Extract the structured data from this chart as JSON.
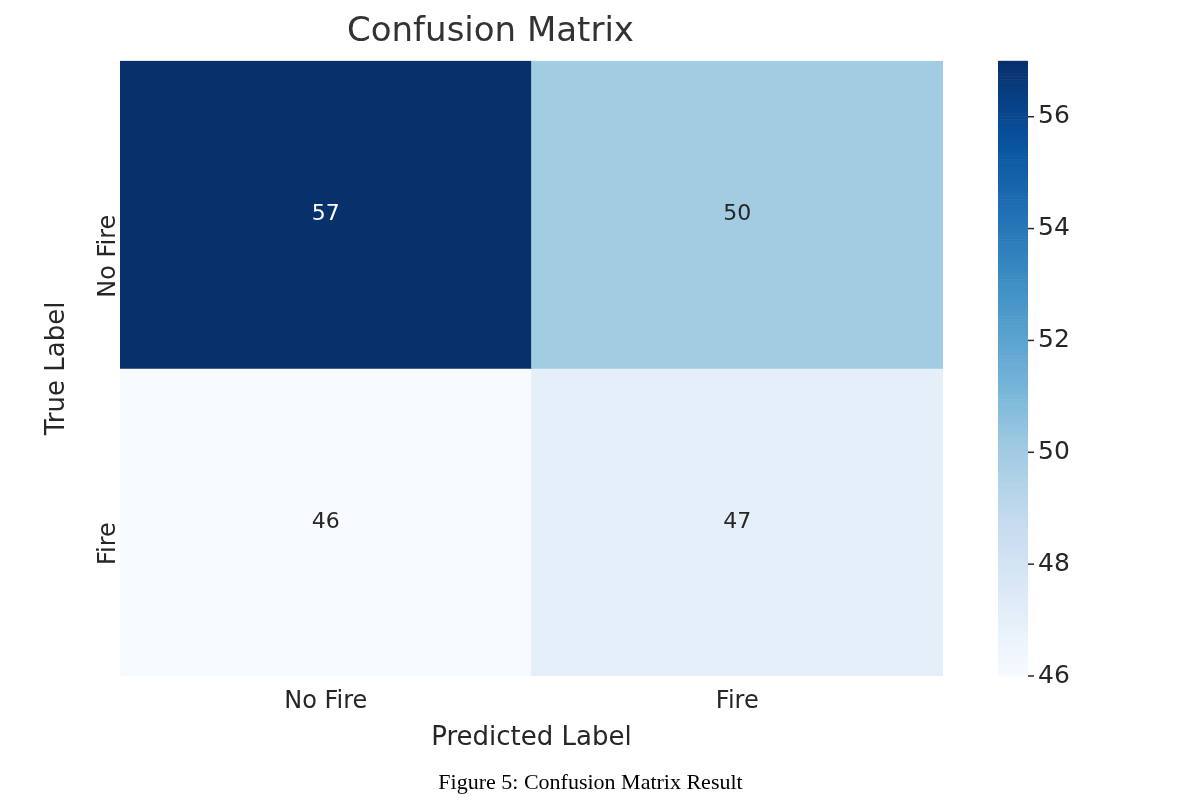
{
  "chart_data": {
    "type": "heatmap",
    "title": "Confusion Matrix",
    "xlabel": "Predicted Label",
    "ylabel": "True Label",
    "categories": [
      "No Fire",
      "Fire"
    ],
    "y_categories": [
      "No Fire",
      "Fire"
    ],
    "cells": [
      [
        57,
        50
      ],
      [
        46,
        47
      ]
    ],
    "data_labels": true,
    "clim": [
      46,
      57
    ],
    "cticks": [
      46,
      48,
      50,
      52,
      54,
      56
    ],
    "annotations": [
      "Figure 5: Confusion Matrix Result"
    ]
  }
}
